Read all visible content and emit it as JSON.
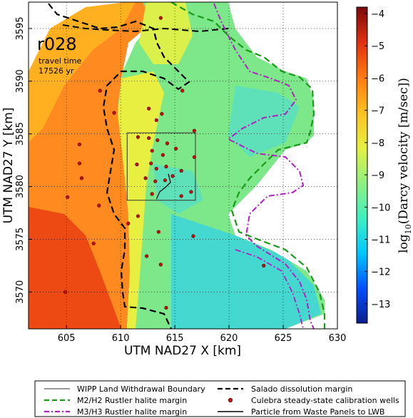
{
  "map": {
    "run_id": "r028",
    "travel_time_label": "travel time",
    "travel_time_value": "17526 yr",
    "xlabel": "UTM NAD27 X [km]",
    "ylabel": "UTM NAD27 Y [km]",
    "x_ticks": [
      "605",
      "610",
      "615",
      "620",
      "625",
      "630"
    ],
    "y_ticks": [
      "3570",
      "3575",
      "3580",
      "3585",
      "3590",
      "3595"
    ],
    "xlim": [
      601.5,
      630
    ],
    "ylim": [
      3566.5,
      3597.5
    ]
  },
  "colorbar": {
    "title_prefix": "log",
    "title_sub": "10",
    "title_suffix": "(Darcy velocity [m/sec])",
    "ticks": [
      "-4",
      "-5",
      "-6",
      "-7",
      "-8",
      "-9",
      "-10",
      "-11",
      "-12",
      "-13"
    ],
    "range": [
      -13.6,
      -3.8
    ],
    "colors": [
      "#0a1f8f",
      "#0050ff",
      "#00c8ff",
      "#40f0c0",
      "#90f080",
      "#e6f040",
      "#ffc020",
      "#ff7a10",
      "#e03010",
      "#7a0a0a"
    ]
  },
  "legend": {
    "items": [
      {
        "label": "WIPP Land Withdrawal Boundary",
        "style": "thin-black"
      },
      {
        "label": "M2/H2 Rustler halite margin",
        "style": "green-dash"
      },
      {
        "label": "M3/H3 Rustler halite margin",
        "style": "purple-dashdot"
      },
      {
        "label": "Salado dissolution margin",
        "style": "black-dash"
      },
      {
        "label": "Culebra steady-state calibration wells",
        "style": "red-dot"
      },
      {
        "label": "Particle from Waste Panels to LWB",
        "style": "black-solid"
      }
    ],
    "colors": {
      "thin-black": "#333333",
      "green-dash": "#1a9a1a",
      "purple-dashdot": "#b020c0",
      "black-dash": "#000000",
      "red-dot": "#c01010",
      "black-solid": "#000000"
    }
  },
  "wells": [
    [
      608.1,
      3589.1
    ],
    [
      609.4,
      3587.0
    ],
    [
      606.2,
      3584.0
    ],
    [
      606.2,
      3582.2
    ],
    [
      605.1,
      3579.0
    ],
    [
      608.0,
      3578.2
    ],
    [
      612.6,
      3587.4
    ],
    [
      613.3,
      3586.3
    ],
    [
      613.8,
      3586.9
    ],
    [
      611.6,
      3584.7
    ],
    [
      612.6,
      3584.6
    ],
    [
      613.4,
      3584.4
    ],
    [
      614.3,
      3584.1
    ],
    [
      615.1,
      3583.6
    ],
    [
      616.8,
      3585.3
    ],
    [
      612.9,
      3583.4
    ],
    [
      613.9,
      3583.0
    ],
    [
      611.5,
      3582.1
    ],
    [
      612.8,
      3582.2
    ],
    [
      613.3,
      3581.7
    ],
    [
      614.2,
      3581.9
    ],
    [
      615.6,
      3581.5
    ],
    [
      614.8,
      3581.0
    ],
    [
      612.3,
      3580.8
    ],
    [
      613.2,
      3580.5
    ],
    [
      614.1,
      3580.6
    ],
    [
      612.9,
      3579.3
    ],
    [
      615.6,
      3579.1
    ],
    [
      611.6,
      3577.2
    ],
    [
      610.7,
      3576.5
    ],
    [
      616.7,
      3575.3
    ],
    [
      604.9,
      3570.0
    ],
    [
      607.5,
      3574.6
    ],
    [
      612.4,
      3573.4
    ],
    [
      613.5,
      3575.7
    ],
    [
      613.7,
      3572.6
    ],
    [
      614.2,
      3568.5
    ],
    [
      616.5,
      3579.5
    ],
    [
      616.8,
      3582.8
    ],
    [
      623.2,
      3572.5
    ],
    [
      613.7,
      3596.0
    ],
    [
      615.7,
      3589.1
    ],
    [
      606.4,
      3580.8
    ]
  ],
  "lwb": [
    [
      610.6,
      3585.1
    ],
    [
      616.9,
      3585.1
    ],
    [
      616.9,
      3578.7
    ],
    [
      610.6,
      3578.7
    ]
  ],
  "particle": [
    [
      614.4,
      3581.2
    ],
    [
      614.6,
      3580.4
    ],
    [
      614.1,
      3579.9
    ],
    [
      613.6,
      3579.5
    ],
    [
      613.3,
      3578.8
    ]
  ]
}
